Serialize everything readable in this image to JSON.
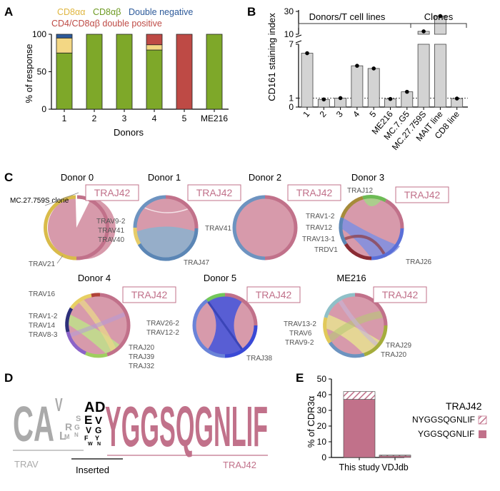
{
  "colors": {
    "cd8aa": "#f3d784",
    "cd8ab": "#7ea829",
    "dn": "#2d5a9a",
    "dp": "#be4a45",
    "traj42": "#d79aab",
    "traj42_dark": "#c1718a",
    "gray_bar": "#d3d3d3",
    "logo_gray": "#aaaaaa"
  },
  "panels": {
    "a": "A",
    "b": "B",
    "c": "C",
    "d": "D",
    "e": "E"
  },
  "chart_data": [
    {
      "id": "A",
      "type": "bar",
      "stacked": true,
      "ylabel": "% of response",
      "xlabel": "Donors",
      "ylim": [
        0,
        100
      ],
      "yticks": [
        "0",
        "50",
        "100"
      ],
      "categories": [
        "1",
        "2",
        "3",
        "4",
        "5",
        "ME216"
      ],
      "legend": [
        "CD8αα",
        "CD8αβ",
        "Double negative",
        "CD4/CD8αβ double positive"
      ],
      "series": [
        {
          "name": "CD8αβ",
          "values": [
            75,
            100,
            100,
            79,
            0,
            100
          ]
        },
        {
          "name": "CD8αα",
          "values": [
            20,
            0,
            0,
            7,
            0,
            0
          ]
        },
        {
          "name": "CD4/CD8αβ double positive",
          "values": [
            0,
            0,
            0,
            14,
            100,
            0
          ]
        },
        {
          "name": "Double negative",
          "values": [
            5,
            0,
            0,
            0,
            0,
            0
          ]
        }
      ]
    },
    {
      "id": "B",
      "type": "bar",
      "ylabel": "CD161 staining index",
      "axis_break": true,
      "yticks": [
        "0",
        "1",
        "7",
        "10",
        "30"
      ],
      "categories": [
        "1",
        "2",
        "3",
        "4",
        "5",
        "ME216",
        "MC.7.G5",
        "MC.27.759S",
        "MAIT line",
        "CD8 line"
      ],
      "values": [
        6.0,
        0.85,
        1.0,
        4.6,
        4.3,
        0.9,
        1.7,
        11.5,
        24.0,
        0.95
      ],
      "group_labels": [
        "Donors/T cell lines",
        "Clones"
      ],
      "reference_line": 1
    },
    {
      "id": "C",
      "type": "chord",
      "traj_label": "TRAJ42",
      "clone_label": "MC.27.759S clone",
      "donors": [
        {
          "title": "Donor 0",
          "labels": [
            "TRAV21"
          ]
        },
        {
          "title": "Donor 1",
          "labels": [
            "TRAV9-2",
            "TRAV41",
            "TRAV40",
            "TRAJ47"
          ]
        },
        {
          "title": "Donor 2",
          "labels": [
            "TRAV41"
          ]
        },
        {
          "title": "Donor 3",
          "labels": [
            "TRAJ12",
            "TRAV1-2",
            "TRAV12",
            "TRAV13-1",
            "TRDV1",
            "TRAJ26"
          ]
        },
        {
          "title": "Donor 4",
          "labels": [
            "TRAV16",
            "TRAV1-2",
            "TRAV14",
            "TRAV8-3",
            "TRAJ20",
            "TRAJ39",
            "TRAJ32"
          ]
        },
        {
          "title": "Donor 5",
          "labels": [
            "TRAV26-2",
            "TRAV12-2",
            "TRAJ38"
          ]
        },
        {
          "title": "ME216",
          "labels": [
            "TRAV13-2",
            "TRAV6",
            "TRAV9-2",
            "TRAJ29",
            "TRAJ20"
          ]
        }
      ]
    },
    {
      "id": "D",
      "type": "sequence_logo",
      "motif": "YGGSQGNLIF",
      "prefix": "CA",
      "labels": [
        "TRAV",
        "Inserted",
        "TRAJ42"
      ]
    },
    {
      "id": "E",
      "type": "bar",
      "stacked": true,
      "ylabel": "% of CDR3α",
      "ylim": [
        0,
        50
      ],
      "yticks": [
        "0",
        "10",
        "20",
        "30",
        "40",
        "50"
      ],
      "categories": [
        "This study",
        "VDJdb"
      ],
      "legend_title": "TRAJ42",
      "series": [
        {
          "name": "YGGSQGNLIF",
          "values": [
            37,
            1
          ]
        },
        {
          "name": "NYGGSQGNLIF",
          "values": [
            5,
            0.5
          ]
        }
      ]
    }
  ]
}
